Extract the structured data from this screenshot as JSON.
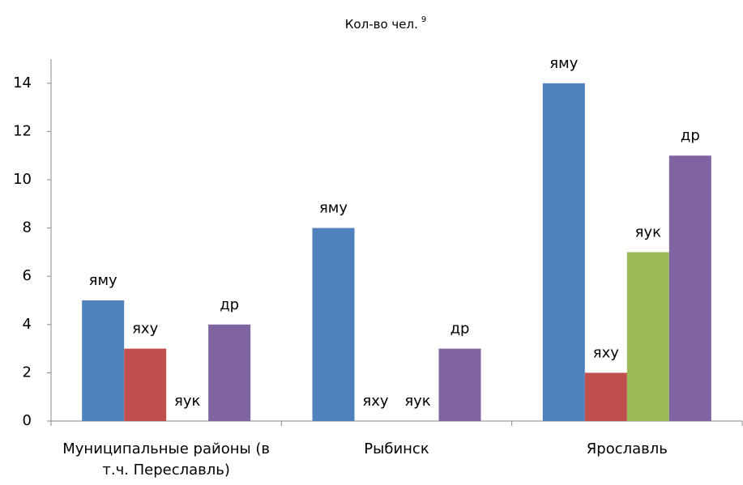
{
  "chart_data": {
    "type": "bar",
    "title": "Кол-во чел.",
    "title_footnote": "9",
    "categories": [
      "Муниципальные районы (в т.ч. Переславль)",
      "Рыбинск",
      "Ярославль"
    ],
    "series": [
      {
        "name": "яму",
        "color": "#4f81bd",
        "values": [
          5,
          8,
          14
        ]
      },
      {
        "name": "яху",
        "color": "#c0504d",
        "values": [
          3,
          0,
          2
        ]
      },
      {
        "name": "яук",
        "color": "#9bbb59",
        "values": [
          0,
          0,
          7
        ]
      },
      {
        "name": "др",
        "color": "#8064a2",
        "values": [
          4,
          3,
          11
        ]
      }
    ],
    "ylim": [
      0,
      15
    ],
    "yticks": [
      0,
      2,
      4,
      6,
      8,
      10,
      12,
      14
    ],
    "grid": false
  }
}
